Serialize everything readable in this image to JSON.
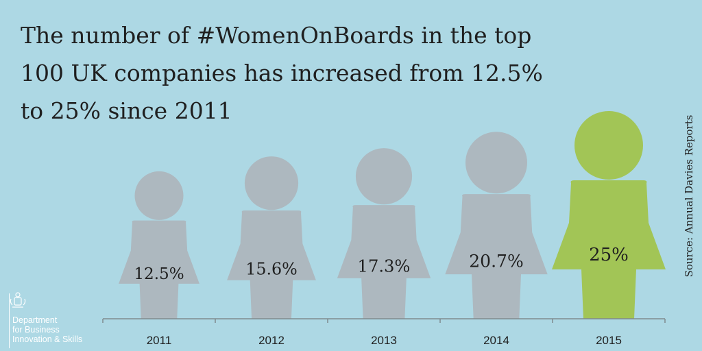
{
  "title": "The number of #WomenOnBoards in the top 100 UK companies has increased from 12.5% to 25% since 2011",
  "source": "Source: Annual Davies Reports",
  "logo": {
    "lines": [
      "Department",
      "for Business",
      "Innovation & Skills"
    ],
    "icon": "royal-coat-of-arms-icon"
  },
  "colors": {
    "background": "#add8e4",
    "figure_default": "#adb8bf",
    "figure_highlight": "#a2c556",
    "baseline": "#7f8a8e"
  },
  "chart_data": {
    "type": "bar",
    "title": "The number of #WomenOnBoards in the top 100 UK companies has increased from 12.5% to 25% since 2011",
    "categories": [
      "2011",
      "2012",
      "2013",
      "2014",
      "2015"
    ],
    "values": [
      12.5,
      15.6,
      17.3,
      20.7,
      25
    ],
    "value_labels": [
      "12.5%",
      "15.6%",
      "17.3%",
      "20.7%",
      "25%"
    ],
    "unit": "%",
    "highlight": "2015",
    "grid": false,
    "legend": "none"
  }
}
